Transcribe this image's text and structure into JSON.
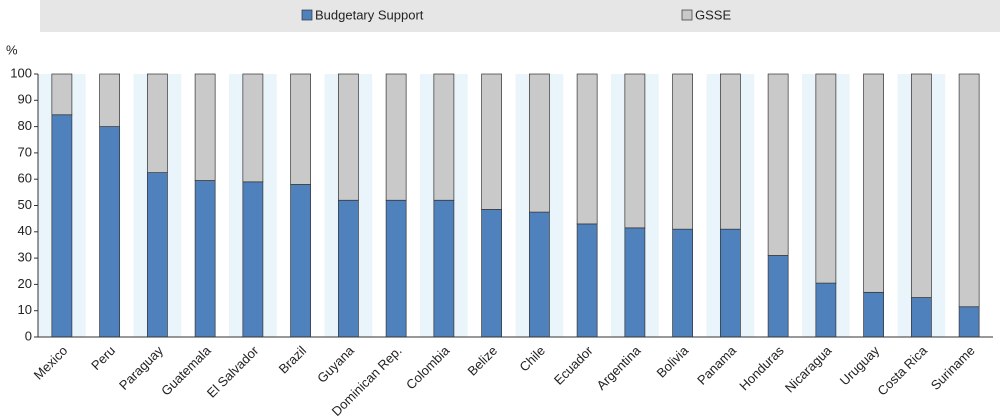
{
  "chart_data": {
    "type": "stacked_bar",
    "ylabel": "%",
    "categories": [
      "Mexico",
      "Peru",
      "Paraguay",
      "Guatemala",
      "El Salvador",
      "Brazil",
      "Guyana",
      "Dominican Rep.",
      "Colombia",
      "Belize",
      "Chile",
      "Ecuador",
      "Argentina",
      "Bolivia",
      "Panama",
      "Honduras",
      "Nicaragua",
      "Uruguay",
      "Costa Rica",
      "Suriname"
    ],
    "series": [
      {
        "name": "Budgetary Support",
        "color": "#4f81bd",
        "values": [
          84.5,
          80,
          62.5,
          59.5,
          59,
          58,
          52,
          52,
          52,
          48.5,
          47.5,
          43,
          41.5,
          41,
          41,
          31,
          20.5,
          17,
          15,
          11.5
        ]
      },
      {
        "name": "GSSE",
        "color": "#c9c9c9",
        "values": [
          15.5,
          20,
          37.5,
          40.5,
          41,
          42,
          48,
          48,
          48,
          51.5,
          52.5,
          57,
          58.5,
          59,
          59,
          69,
          79.5,
          83,
          85,
          88.5
        ]
      }
    ],
    "ylim": [
      0,
      100
    ],
    "yticks": [
      0,
      10,
      20,
      30,
      40,
      50,
      60,
      70,
      80,
      90,
      100
    ]
  }
}
